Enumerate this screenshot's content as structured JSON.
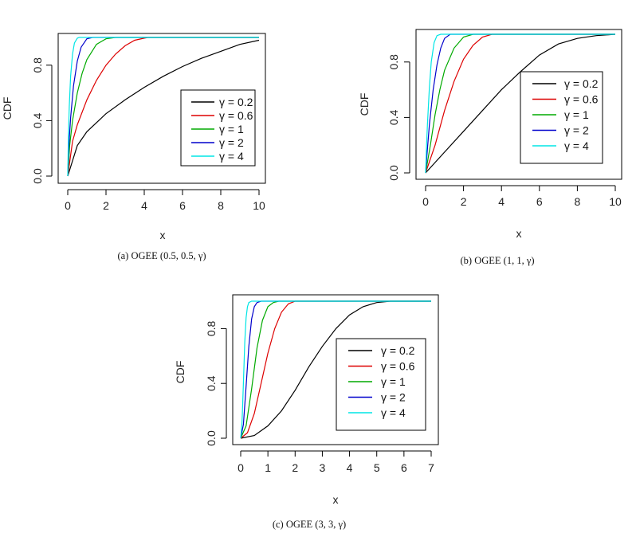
{
  "chart_data": [
    {
      "type": "line",
      "caption": "(a)   OGEE (0.5, 0.5, γ)",
      "xlabel": "x",
      "ylabel": "CDF",
      "xlim": [
        0,
        10
      ],
      "ylim": [
        0,
        1
      ],
      "x_ticks": [
        "0",
        "2",
        "4",
        "6",
        "8",
        "10"
      ],
      "y_ticks": [
        "0.0",
        "0.4",
        "0.8"
      ],
      "legend_position": "right",
      "series": [
        {
          "name": "γ = 0.2",
          "color": "#000000",
          "x": [
            0,
            0.5,
            1,
            2,
            3,
            4,
            5,
            6,
            7,
            8,
            9,
            10
          ],
          "y": [
            0,
            0.22,
            0.32,
            0.45,
            0.55,
            0.64,
            0.72,
            0.79,
            0.85,
            0.9,
            0.95,
            0.98
          ]
        },
        {
          "name": "γ = 0.6",
          "color": "#dd0000",
          "x": [
            0,
            0.25,
            0.5,
            1,
            1.5,
            2,
            2.5,
            3,
            3.5,
            4,
            4.2
          ],
          "y": [
            0,
            0.25,
            0.37,
            0.55,
            0.69,
            0.8,
            0.88,
            0.94,
            0.98,
            0.995,
            1.0
          ]
        },
        {
          "name": "γ = 1",
          "color": "#00aa00",
          "x": [
            0,
            0.1,
            0.25,
            0.5,
            0.75,
            1,
            1.5,
            2,
            2.5
          ],
          "y": [
            0,
            0.22,
            0.4,
            0.6,
            0.74,
            0.84,
            0.95,
            0.99,
            1.0
          ]
        },
        {
          "name": "γ = 2",
          "color": "#0000cc",
          "x": [
            0,
            0.05,
            0.15,
            0.3,
            0.5,
            0.7,
            1,
            1.3
          ],
          "y": [
            0,
            0.2,
            0.42,
            0.65,
            0.83,
            0.93,
            0.99,
            1.0
          ]
        },
        {
          "name": "γ = 4",
          "color": "#00e5e5",
          "x": [
            0,
            0.03,
            0.08,
            0.15,
            0.25,
            0.35,
            0.5,
            0.6
          ],
          "y": [
            0,
            0.25,
            0.5,
            0.72,
            0.88,
            0.96,
            0.995,
            1.0
          ]
        }
      ]
    },
    {
      "type": "line",
      "caption": "(b) OGEE (1, 1, γ)",
      "xlabel": "x",
      "ylabel": "CDF",
      "xlim": [
        0,
        10
      ],
      "ylim": [
        0,
        1
      ],
      "x_ticks": [
        "0",
        "2",
        "4",
        "6",
        "8",
        "10"
      ],
      "y_ticks": [
        "0.0",
        "0.4",
        "0.8"
      ],
      "legend_position": "right",
      "series": [
        {
          "name": "γ = 0.2",
          "color": "#000000",
          "x": [
            0,
            1,
            2,
            3,
            4,
            5,
            6,
            7,
            8,
            9,
            10
          ],
          "y": [
            0,
            0.15,
            0.3,
            0.45,
            0.6,
            0.73,
            0.85,
            0.93,
            0.97,
            0.99,
            1.0
          ]
        },
        {
          "name": "γ = 0.6",
          "color": "#dd0000",
          "x": [
            0,
            0.5,
            1,
            1.5,
            2,
            2.5,
            3,
            3.5
          ],
          "y": [
            0,
            0.2,
            0.45,
            0.66,
            0.82,
            0.92,
            0.98,
            1.0
          ]
        },
        {
          "name": "γ = 1",
          "color": "#00aa00",
          "x": [
            0,
            0.25,
            0.5,
            0.75,
            1,
            1.5,
            2,
            2.5
          ],
          "y": [
            0,
            0.2,
            0.42,
            0.6,
            0.74,
            0.9,
            0.98,
            1.0
          ]
        },
        {
          "name": "γ = 2",
          "color": "#0000cc",
          "x": [
            0,
            0.1,
            0.2,
            0.4,
            0.6,
            0.8,
            1,
            1.3
          ],
          "y": [
            0,
            0.18,
            0.35,
            0.6,
            0.78,
            0.9,
            0.97,
            1.0
          ]
        },
        {
          "name": "γ = 4",
          "color": "#00e5e5",
          "x": [
            0,
            0.05,
            0.1,
            0.2,
            0.3,
            0.45,
            0.6,
            0.8
          ],
          "y": [
            0,
            0.2,
            0.36,
            0.62,
            0.8,
            0.94,
            0.99,
            1.0
          ]
        }
      ]
    },
    {
      "type": "line",
      "caption": "(c) OGEE (3, 3, γ)",
      "xlabel": "x",
      "ylabel": "CDF",
      "xlim": [
        0,
        7
      ],
      "ylim": [
        0,
        1
      ],
      "x_ticks": [
        "0",
        "1",
        "2",
        "3",
        "4",
        "5",
        "6",
        "7"
      ],
      "y_ticks": [
        "0.0",
        "0.4",
        "0.8"
      ],
      "legend_position": "right",
      "series": [
        {
          "name": "γ = 0.2",
          "color": "#000000",
          "x": [
            0,
            0.5,
            1,
            1.5,
            2,
            2.5,
            3,
            3.5,
            4,
            4.5,
            5,
            5.5,
            6.2
          ],
          "y": [
            0,
            0.02,
            0.09,
            0.2,
            0.35,
            0.52,
            0.67,
            0.8,
            0.9,
            0.96,
            0.99,
            1.0,
            1.0
          ]
        },
        {
          "name": "γ = 0.6",
          "color": "#dd0000",
          "x": [
            0,
            0.25,
            0.5,
            0.75,
            1,
            1.25,
            1.5,
            1.75,
            2,
            2.2
          ],
          "y": [
            0,
            0.04,
            0.18,
            0.4,
            0.62,
            0.8,
            0.92,
            0.98,
            1.0,
            1.0
          ]
        },
        {
          "name": "γ = 1",
          "color": "#00aa00",
          "x": [
            0,
            0.2,
            0.4,
            0.6,
            0.8,
            1,
            1.2,
            1.4
          ],
          "y": [
            0,
            0.09,
            0.36,
            0.66,
            0.86,
            0.96,
            0.99,
            1.0
          ]
        },
        {
          "name": "γ = 2",
          "color": "#0000cc",
          "x": [
            0,
            0.1,
            0.2,
            0.3,
            0.4,
            0.5,
            0.6,
            0.75
          ],
          "y": [
            0,
            0.1,
            0.38,
            0.67,
            0.87,
            0.96,
            0.99,
            1.0
          ]
        },
        {
          "name": "γ = 4",
          "color": "#00e5e5",
          "x": [
            0,
            0.05,
            0.1,
            0.15,
            0.2,
            0.25,
            0.3,
            0.4
          ],
          "y": [
            0,
            0.12,
            0.4,
            0.7,
            0.88,
            0.96,
            0.99,
            1.0
          ]
        }
      ]
    }
  ]
}
